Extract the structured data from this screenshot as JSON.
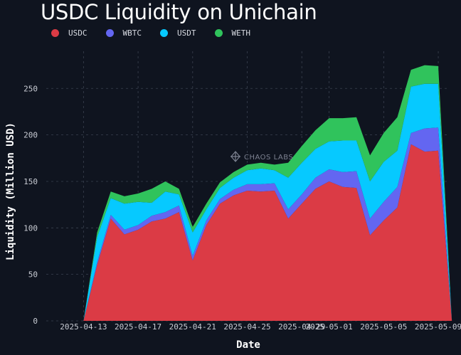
{
  "chart_data": {
    "type": "area",
    "title": "USDC Liquidity on Unichain",
    "xlabel": "Date",
    "ylabel": "Liquidity (Million USD)",
    "stacked": true,
    "ylim": [
      0,
      290
    ],
    "yticks": [
      0,
      50,
      100,
      150,
      200,
      250
    ],
    "x": [
      "2025-04-11",
      "2025-04-12",
      "2025-04-13",
      "2025-04-14",
      "2025-04-15",
      "2025-04-16",
      "2025-04-17",
      "2025-04-18",
      "2025-04-19",
      "2025-04-20",
      "2025-04-21",
      "2025-04-22",
      "2025-04-23",
      "2025-04-24",
      "2025-04-25",
      "2025-04-26",
      "2025-04-27",
      "2025-04-28",
      "2025-04-29",
      "2025-04-30",
      "2025-05-01",
      "2025-05-02",
      "2025-05-03",
      "2025-05-04",
      "2025-05-05",
      "2025-05-06",
      "2025-05-07",
      "2025-05-08",
      "2025-05-09",
      "2025-05-10"
    ],
    "xticks": [
      "2025-04-13",
      "2025-04-17",
      "2025-04-21",
      "2025-04-25",
      "2025-04-29",
      "2025-05-01",
      "2025-05-05",
      "2025-05-09"
    ],
    "series": [
      {
        "name": "USDC",
        "color": "#db3b45",
        "values": [
          0,
          0,
          0,
          60,
          110,
          93,
          98,
          107,
          110,
          117,
          65,
          103,
          126,
          135,
          140,
          139,
          140,
          110,
          126,
          142,
          150,
          144,
          143,
          92,
          108,
          122,
          190,
          182,
          183,
          0
        ]
      },
      {
        "name": "WBTC",
        "color": "#6366f1",
        "values": [
          0,
          0,
          0,
          3,
          4,
          5,
          5,
          6,
          7,
          7,
          5,
          5,
          5,
          6,
          7,
          8,
          8,
          10,
          10,
          12,
          13,
          16,
          18,
          18,
          20,
          22,
          12,
          25,
          25,
          0
        ]
      },
      {
        "name": "USDT",
        "color": "#06c9ff",
        "values": [
          0,
          0,
          0,
          27,
          18,
          28,
          25,
          14,
          22,
          12,
          25,
          12,
          12,
          13,
          15,
          17,
          14,
          34,
          34,
          31,
          30,
          34,
          33,
          40,
          43,
          39,
          50,
          48,
          47,
          0
        ]
      },
      {
        "name": "WETH",
        "color": "#30c35c",
        "values": [
          0,
          0,
          0,
          5,
          7,
          8,
          9,
          15,
          11,
          6,
          6,
          6,
          6,
          6,
          6,
          6,
          6,
          16,
          18,
          20,
          25,
          24,
          25,
          28,
          31,
          36,
          18,
          20,
          19,
          0
        ]
      }
    ],
    "legend_position": "top-left",
    "grid": true,
    "watermark": "CHAOS LABS"
  }
}
